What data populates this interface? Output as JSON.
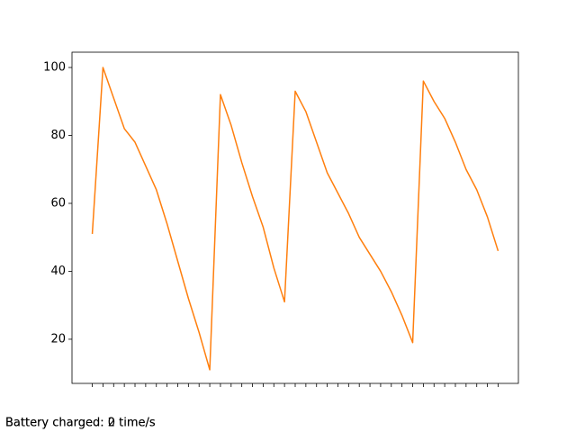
{
  "chart_data": {
    "type": "line",
    "categories": [
      null,
      null,
      null,
      null,
      null,
      null,
      null,
      null,
      null,
      null,
      null,
      null,
      null,
      null,
      null,
      null,
      null,
      null,
      null,
      null,
      null,
      null,
      null,
      null,
      null,
      null,
      null,
      null,
      null,
      null,
      null,
      null,
      null,
      null,
      null,
      null,
      null,
      null,
      null
    ],
    "series": [
      {
        "color": "#ff7f0e",
        "values": [
          51,
          100,
          91,
          82,
          78,
          71,
          64,
          54,
          43,
          32,
          22,
          11,
          92,
          83,
          72,
          62,
          53,
          41,
          31,
          93,
          87,
          78,
          69,
          63,
          57,
          50,
          45,
          40,
          34,
          27,
          19,
          96,
          90,
          85,
          78,
          70,
          64,
          56,
          46
        ]
      }
    ],
    "ylim": [
      7,
      104.5
    ],
    "yticks": [
      20,
      40,
      60,
      80,
      100
    ],
    "annotations": [
      "Battery charged: 2 time/s",
      "Battery charged: 0 time/s"
    ]
  }
}
